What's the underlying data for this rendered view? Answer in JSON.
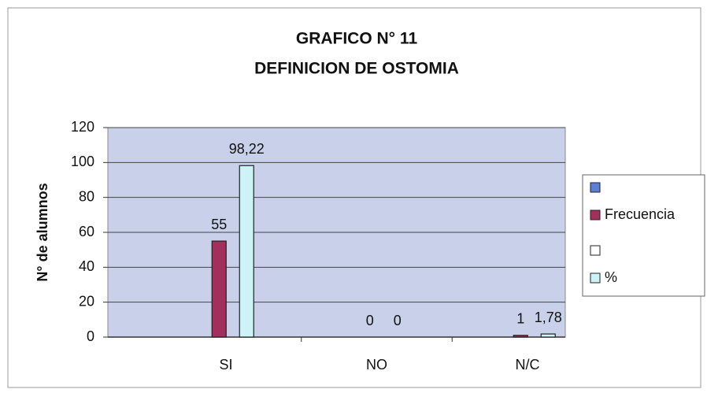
{
  "chart_data": {
    "type": "bar",
    "title": "GRAFICO N° 11",
    "subtitle": "DEFINICION DE OSTOMIA",
    "y_label": "N° de alumnos",
    "categories": [
      "SI",
      "NO",
      "N/C"
    ],
    "series": [
      {
        "color": "#5b7fd6",
        "values": [
          null,
          null,
          null
        ]
      },
      {
        "name": "Frecuencia",
        "color": "#a3305c",
        "values": [
          55,
          0,
          1
        ]
      },
      {
        "color": "#ffffff",
        "values": [
          null,
          null,
          null
        ]
      },
      {
        "name": "%",
        "color": "#ccf4f8",
        "values": [
          98.22,
          0,
          1.78
        ],
        "value_labels": [
          "98,22",
          "0",
          "1,78"
        ]
      }
    ],
    "ylim": [
      0,
      120
    ],
    "yticks": [
      0,
      20,
      40,
      60,
      80,
      100,
      120
    ],
    "grid": true,
    "legend": "right"
  }
}
